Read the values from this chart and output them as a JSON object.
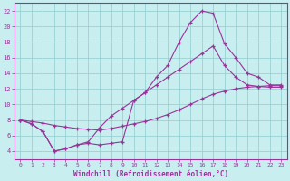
{
  "xlabel": "Windchill (Refroidissement éolien,°C)",
  "background_color": "#c8eef0",
  "grid_color": "#90ccd0",
  "line_color": "#993399",
  "xlim": [
    -0.5,
    23.5
  ],
  "ylim": [
    3.0,
    23.0
  ],
  "xticks": [
    0,
    1,
    2,
    3,
    4,
    5,
    6,
    7,
    8,
    9,
    10,
    11,
    12,
    13,
    14,
    15,
    16,
    17,
    18,
    19,
    20,
    21,
    22,
    23
  ],
  "yticks": [
    4,
    6,
    8,
    10,
    12,
    14,
    16,
    18,
    20,
    22
  ],
  "series1_x": [
    0,
    1,
    2,
    3,
    4,
    5,
    6,
    7,
    8,
    9,
    10,
    11,
    12,
    13,
    14,
    15,
    16,
    17,
    18,
    19,
    20,
    21,
    22,
    23
  ],
  "series1_y": [
    8.0,
    7.5,
    6.5,
    4.0,
    4.3,
    4.8,
    5.0,
    4.8,
    5.0,
    5.2,
    10.5,
    11.5,
    13.5,
    15.0,
    18.0,
    20.5,
    22.0,
    21.7,
    17.8,
    16.0,
    14.0,
    13.5,
    12.5,
    12.5
  ],
  "series2_x": [
    0,
    1,
    2,
    3,
    4,
    5,
    6,
    7,
    8,
    9,
    10,
    11,
    12,
    13,
    14,
    15,
    16,
    17,
    18,
    19,
    20,
    21,
    22,
    23
  ],
  "series2_y": [
    8.0,
    7.5,
    6.5,
    4.0,
    4.3,
    4.8,
    5.2,
    7.0,
    8.5,
    9.5,
    10.5,
    11.5,
    12.5,
    13.5,
    14.5,
    15.5,
    16.5,
    17.5,
    15.0,
    13.5,
    12.5,
    12.3,
    12.2,
    12.2
  ],
  "series3_x": [
    0,
    1,
    2,
    3,
    4,
    5,
    6,
    7,
    8,
    9,
    10,
    11,
    12,
    13,
    14,
    15,
    16,
    17,
    18,
    19,
    20,
    21,
    22,
    23
  ],
  "series3_y": [
    8.0,
    7.8,
    7.6,
    7.3,
    7.1,
    6.9,
    6.8,
    6.7,
    6.9,
    7.2,
    7.5,
    7.8,
    8.2,
    8.7,
    9.3,
    10.0,
    10.7,
    11.3,
    11.7,
    12.0,
    12.2,
    12.3,
    12.4,
    12.4
  ]
}
